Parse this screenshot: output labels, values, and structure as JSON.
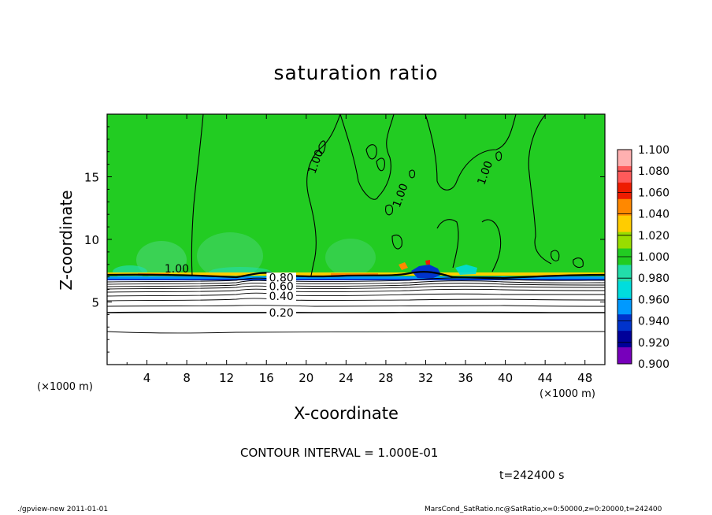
{
  "chart_data": {
    "type": "heatmap",
    "title": "saturation ratio",
    "xlabel": "X-coordinate",
    "ylabel": "Z-coordinate",
    "x_unit_label": "(×1000 m)",
    "x_ticks": [
      4,
      8,
      12,
      16,
      20,
      24,
      28,
      32,
      36,
      40,
      44,
      48
    ],
    "y_ticks": [
      5,
      10,
      15
    ],
    "xlim": [
      0,
      50
    ],
    "ylim": [
      0,
      20
    ],
    "colorbar": {
      "levels": [
        "1.100",
        "1.080",
        "1.060",
        "1.040",
        "1.020",
        "1.000",
        "0.980",
        "0.960",
        "0.940",
        "0.920",
        "0.900"
      ],
      "colors": [
        "#ffb0b0",
        "#ff5a5a",
        "#ee1c00",
        "#ff8800",
        "#ffcc00",
        "#99dd00",
        "#22cc22",
        "#22ddaa",
        "#00dddd",
        "#0099ff",
        "#0033cc",
        "#000099",
        "#7700bb"
      ]
    },
    "contour_labels": [
      {
        "text": "1.00",
        "x": 7.0,
        "y": 7.6
      },
      {
        "text": "1.00",
        "x": 21.0,
        "y": 16.2,
        "angle": -70
      },
      {
        "text": "1.00",
        "x": 29.5,
        "y": 13.5,
        "angle": -70
      },
      {
        "text": "1.00",
        "x": 38.0,
        "y": 15.3,
        "angle": -70
      },
      {
        "text": "0.80",
        "x": 17.5,
        "y": 6.9
      },
      {
        "text": "0.60",
        "x": 17.5,
        "y": 6.2
      },
      {
        "text": "0.40",
        "x": 17.5,
        "y": 5.4
      },
      {
        "text": "0.20",
        "x": 17.5,
        "y": 4.1
      }
    ],
    "contour_interval": "CONTOUR INTERVAL = 1.000E-01",
    "time": "t=242400 s"
  },
  "footer": {
    "left": "./gpview-new   2011-01-01",
    "right": "MarsCond_SatRatio.nc@SatRatio,x=0:50000,z=0:20000,t=242400"
  }
}
